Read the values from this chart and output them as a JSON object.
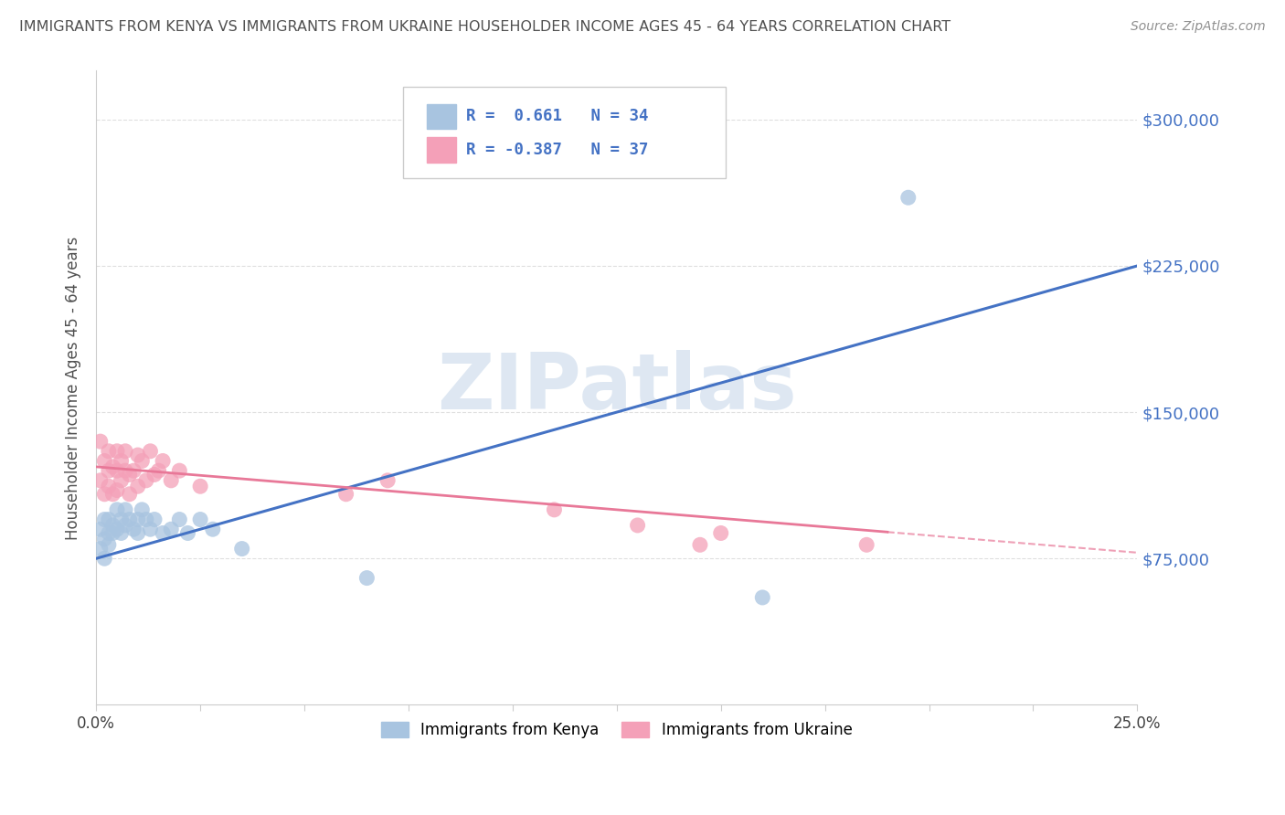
{
  "title": "IMMIGRANTS FROM KENYA VS IMMIGRANTS FROM UKRAINE HOUSEHOLDER INCOME AGES 45 - 64 YEARS CORRELATION CHART",
  "source": "Source: ZipAtlas.com",
  "ylabel": "Householder Income Ages 45 - 64 years",
  "xlim": [
    0.0,
    0.25
  ],
  "ylim": [
    0,
    325000
  ],
  "xticks": [
    0.0,
    0.025,
    0.05,
    0.075,
    0.1,
    0.125,
    0.15,
    0.175,
    0.2,
    0.225,
    0.25
  ],
  "ytick_positions": [
    75000,
    150000,
    225000,
    300000
  ],
  "ytick_labels": [
    "$75,000",
    "$150,000",
    "$225,000",
    "$300,000"
  ],
  "kenya_color": "#a8c4e0",
  "ukraine_color": "#f4a0b8",
  "kenya_R": 0.661,
  "kenya_N": 34,
  "ukraine_R": -0.387,
  "ukraine_N": 37,
  "kenya_scatter_x": [
    0.001,
    0.001,
    0.002,
    0.002,
    0.002,
    0.003,
    0.003,
    0.003,
    0.004,
    0.004,
    0.005,
    0.005,
    0.006,
    0.006,
    0.007,
    0.007,
    0.008,
    0.009,
    0.01,
    0.01,
    0.011,
    0.012,
    0.013,
    0.014,
    0.016,
    0.018,
    0.02,
    0.022,
    0.025,
    0.028,
    0.035,
    0.065,
    0.16,
    0.195
  ],
  "kenya_scatter_y": [
    90000,
    80000,
    95000,
    85000,
    75000,
    95000,
    88000,
    82000,
    92000,
    88000,
    100000,
    90000,
    95000,
    88000,
    100000,
    92000,
    95000,
    90000,
    95000,
    88000,
    100000,
    95000,
    90000,
    95000,
    88000,
    90000,
    95000,
    88000,
    95000,
    90000,
    80000,
    65000,
    55000,
    260000
  ],
  "ukraine_scatter_x": [
    0.001,
    0.001,
    0.002,
    0.002,
    0.003,
    0.003,
    0.003,
    0.004,
    0.004,
    0.005,
    0.005,
    0.005,
    0.006,
    0.006,
    0.007,
    0.007,
    0.008,
    0.008,
    0.009,
    0.01,
    0.01,
    0.011,
    0.012,
    0.013,
    0.014,
    0.015,
    0.016,
    0.018,
    0.02,
    0.025,
    0.06,
    0.07,
    0.11,
    0.13,
    0.145,
    0.15,
    0.185
  ],
  "ukraine_scatter_y": [
    135000,
    115000,
    125000,
    108000,
    120000,
    112000,
    130000,
    122000,
    108000,
    130000,
    120000,
    110000,
    125000,
    115000,
    120000,
    130000,
    118000,
    108000,
    120000,
    128000,
    112000,
    125000,
    115000,
    130000,
    118000,
    120000,
    125000,
    115000,
    120000,
    112000,
    108000,
    115000,
    100000,
    92000,
    82000,
    88000,
    82000
  ],
  "kenya_line_color": "#4472c4",
  "ukraine_line_color": "#e87898",
  "ukraine_line_dash": true,
  "watermark_text": "ZIPatlas",
  "watermark_color": "#c8d8ea",
  "background_color": "#ffffff",
  "grid_color": "#d8d8d8",
  "legend_kenya_label": "Immigrants from Kenya",
  "legend_ukraine_label": "Immigrants from Ukraine",
  "title_color": "#505050",
  "axis_label_color": "#505050",
  "tick_color_right": "#4472c4",
  "kenya_line_y0": 75000,
  "kenya_line_y1": 225000,
  "ukraine_line_y0": 122000,
  "ukraine_line_y1": 78000
}
